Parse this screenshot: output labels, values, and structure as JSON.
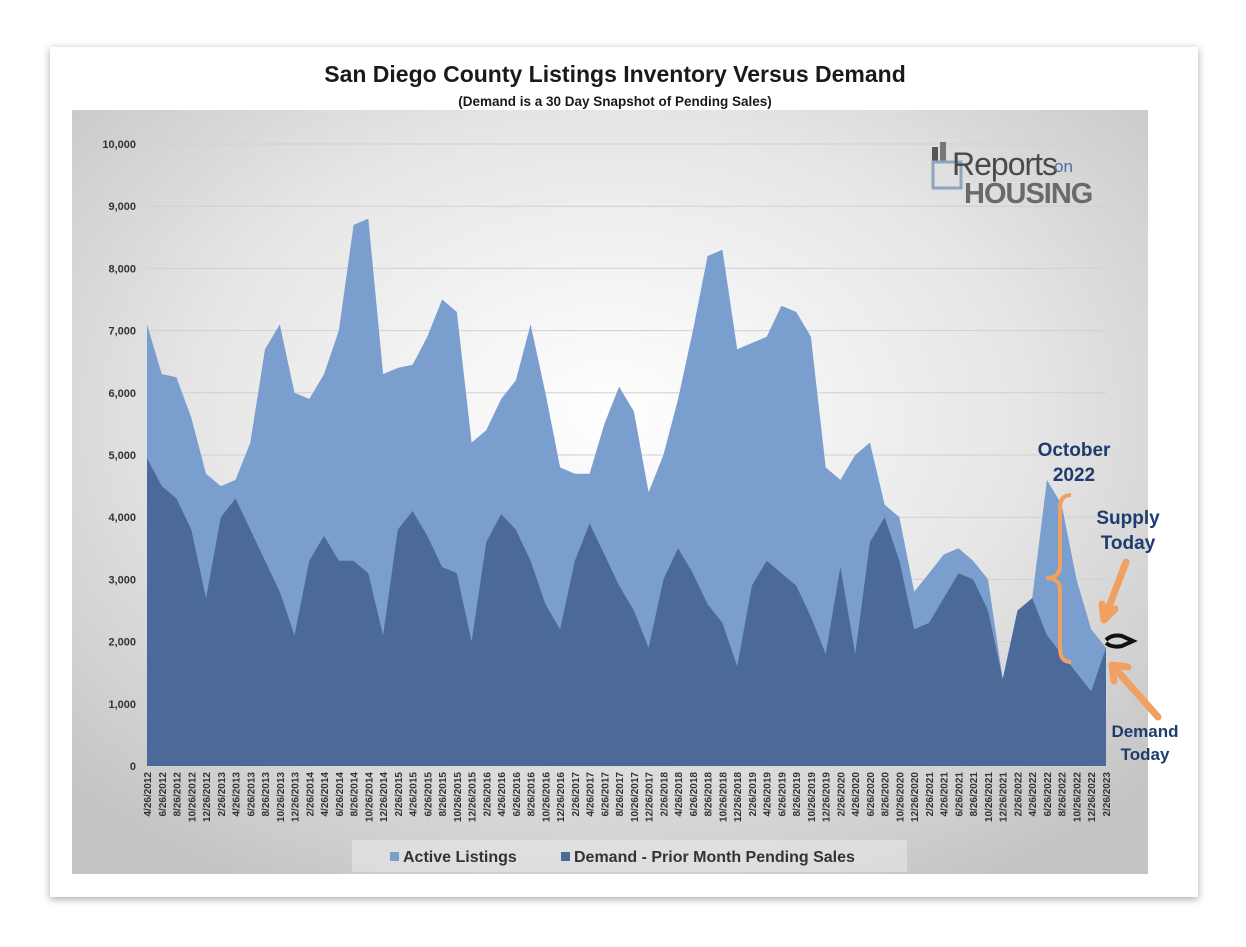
{
  "chart_data": {
    "type": "area",
    "title": "San Diego County Listings Inventory Versus Demand",
    "subtitle": "(Demand is a 30 Day Snapshot of Pending Sales)",
    "ylim": [
      0,
      10000
    ],
    "y_ticks": [
      "10,000",
      "9,000",
      "8,000",
      "7,000",
      "6,000",
      "5,000",
      "4,000",
      "3,000",
      "2,000",
      "1,000",
      "0"
    ],
    "x_ticks": [
      "4/26/2012",
      "6/26/2012",
      "8/26/2012",
      "10/26/2012",
      "12/26/2012",
      "2/26/2013",
      "4/26/2013",
      "6/26/2013",
      "8/26/2013",
      "10/26/2013",
      "12/26/2013",
      "2/26/2014",
      "4/26/2014",
      "6/26/2014",
      "8/26/2014",
      "10/26/2014",
      "12/26/2014",
      "2/26/2015",
      "4/26/2015",
      "6/26/2015",
      "8/26/2015",
      "10/26/2015",
      "12/26/2015",
      "2/26/2016",
      "4/26/2016",
      "6/26/2016",
      "8/26/2016",
      "10/26/2016",
      "12/26/2016",
      "2/26/2017",
      "4/26/2017",
      "6/26/2017",
      "8/26/2017",
      "10/26/2017",
      "12/26/2017",
      "2/26/2018",
      "4/26/2018",
      "6/26/2018",
      "8/26/2018",
      "10/26/2018",
      "12/26/2018",
      "2/26/2019",
      "4/26/2019",
      "6/26/2019",
      "8/26/2019",
      "10/26/2019",
      "12/26/2019",
      "2/26/2020",
      "4/26/2020",
      "6/26/2020",
      "8/26/2020",
      "10/26/2020",
      "12/26/2020",
      "2/26/2021",
      "4/26/2021",
      "6/26/2021",
      "8/26/2021",
      "10/26/2021",
      "12/26/2021",
      "2/26/2022",
      "4/26/2022",
      "6/26/2022",
      "8/26/2022",
      "10/26/2022",
      "12/26/2022",
      "2/26/2023"
    ],
    "series": [
      {
        "name": "Active Listings",
        "color": "#7a9fcf",
        "values": [
          7100,
          6300,
          6250,
          5600,
          4700,
          4500,
          4600,
          5200,
          6700,
          7100,
          6000,
          5900,
          6300,
          7000,
          8700,
          8800,
          6300,
          6400,
          6450,
          6900,
          7500,
          7300,
          5200,
          5400,
          5900,
          6200,
          7100,
          6000,
          4800,
          4700,
          4700,
          5500,
          6100,
          5700,
          4400,
          5000,
          5900,
          7000,
          8200,
          8300,
          6700,
          6800,
          6900,
          7400,
          7300,
          6900,
          4800,
          4600,
          5000,
          5200,
          4200,
          4000,
          2800,
          3100,
          3400,
          3500,
          3300,
          3000,
          1400,
          2200,
          2700,
          4600,
          4200,
          3000,
          2200,
          1900
        ]
      },
      {
        "name": "Demand - Prior Month Pending Sales",
        "color": "#4b6a99",
        "values": [
          4950,
          4500,
          4300,
          3800,
          2700,
          4000,
          4300,
          3800,
          3300,
          2800,
          2100,
          3300,
          3700,
          3300,
          3300,
          3100,
          2100,
          3800,
          4100,
          3700,
          3200,
          3100,
          2000,
          3600,
          4050,
          3800,
          3300,
          2600,
          2200,
          3300,
          3900,
          3400,
          2900,
          2500,
          1900,
          3000,
          3500,
          3100,
          2600,
          2300,
          1600,
          2900,
          3300,
          3100,
          2900,
          2400,
          1800,
          3200,
          1800,
          3600,
          4000,
          3300,
          2200,
          2300,
          2700,
          3100,
          3000,
          2500,
          1400,
          2500,
          2700,
          2100,
          1800,
          1500,
          1200,
          1900
        ]
      }
    ],
    "legend": [
      "Active Listings",
      "Demand - Prior Month Pending Sales"
    ],
    "annotations": {
      "october": [
        "October",
        "2022"
      ],
      "supply": [
        "Supply",
        "Today"
      ],
      "demand": [
        "Demand",
        "Today"
      ]
    }
  },
  "logo": {
    "line1": "Reports",
    "on": "on",
    "line2": "HOUSING"
  },
  "colors": {
    "active": "#7a9fcf",
    "demand": "#4b6a99",
    "annotation_text": "#1f3c6e",
    "arrow": "#f0a060"
  }
}
